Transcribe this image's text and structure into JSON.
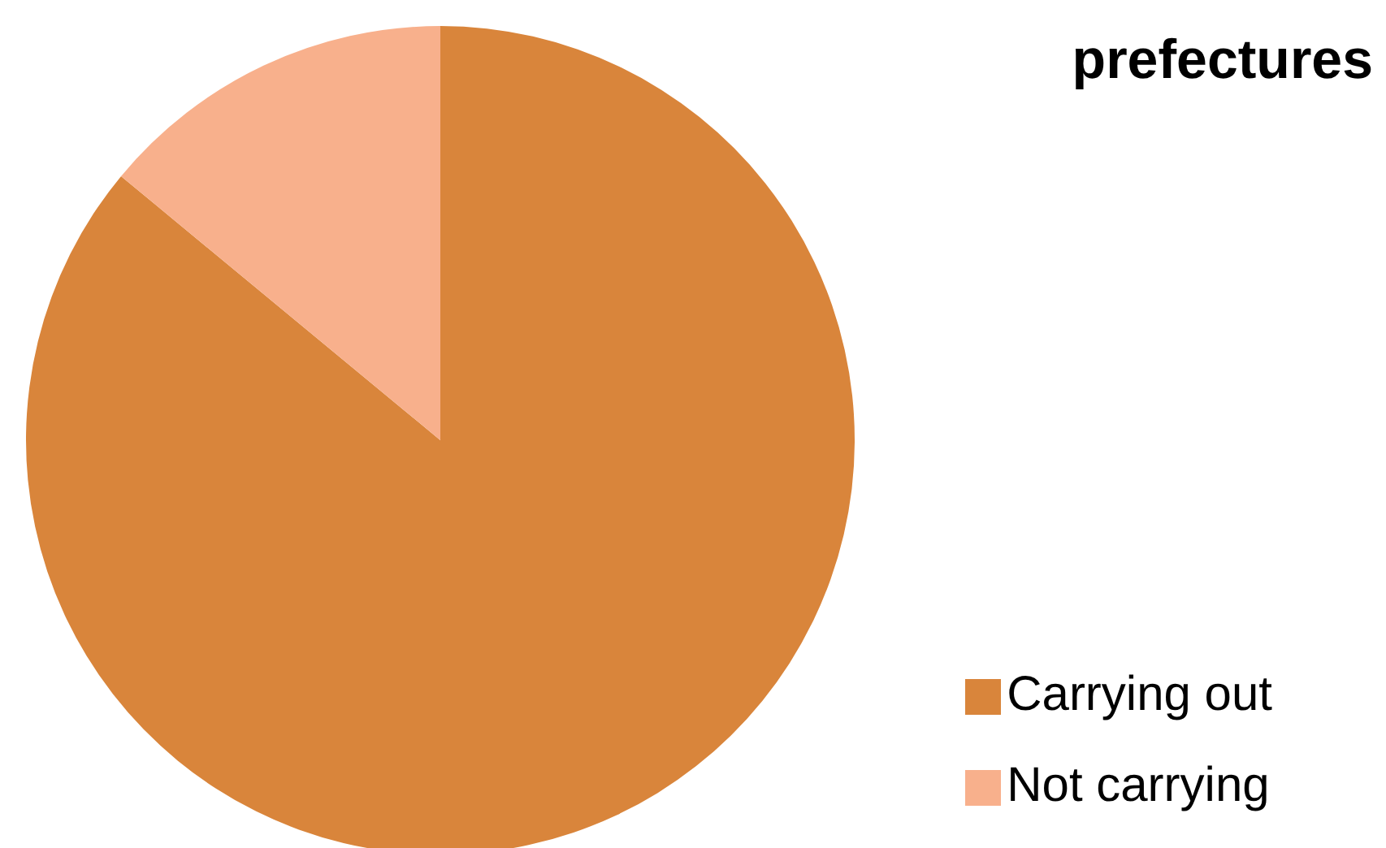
{
  "chart_data": {
    "type": "pie",
    "title": "prefectures",
    "categories": [
      "Carrying out",
      "Not carrying"
    ],
    "values": [
      86,
      14
    ],
    "colors": [
      "#d9853b",
      "#f8b08c"
    ],
    "legend": "bottom right"
  }
}
